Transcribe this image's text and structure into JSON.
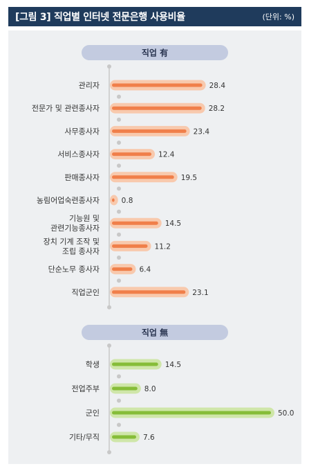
{
  "header": {
    "title": "[그림 3]  직업별 인터넷 전문은행 사용비율",
    "unit": "(단위: %)"
  },
  "colors": {
    "header_bg": "#1f3b5c",
    "section_pill": "#c3cbe0",
    "employed_bar": "#f07f4a",
    "employed_halo": "#f8c9ad",
    "unemployed_bar": "#86bd38",
    "unemployed_halo": "#cfe6a9",
    "axis": "#c8c8c8"
  },
  "chart_data": [
    {
      "type": "bar",
      "orientation": "horizontal",
      "title": "직업 有",
      "xlim": [
        0,
        50
      ],
      "categories": [
        "관리자",
        "전문가 및 관련종사자",
        "사무종사자",
        "서비스종사자",
        "판매종사자",
        "농림어업숙련종사자",
        "기능원 및\n관련기능종사자",
        "장치 기계 조작 및\n조립 종사자",
        "단순노무 종사자",
        "직업군인"
      ],
      "values": [
        28.4,
        28.2,
        23.4,
        12.4,
        19.5,
        0.8,
        14.5,
        11.2,
        6.4,
        23.1
      ],
      "value_labels": [
        "28.4",
        "28.2",
        "23.4",
        "12.4",
        "19.5",
        "0.8",
        "14.5",
        "11.2",
        "6.4",
        "23.1"
      ]
    },
    {
      "type": "bar",
      "orientation": "horizontal",
      "title": "직업 無",
      "xlim": [
        0,
        50
      ],
      "categories": [
        "학생",
        "전업주부",
        "군인",
        "기타/무직"
      ],
      "values": [
        14.5,
        8.0,
        50.0,
        7.6
      ],
      "value_labels": [
        "14.5",
        "8.0",
        "50.0",
        "7.6"
      ]
    }
  ]
}
